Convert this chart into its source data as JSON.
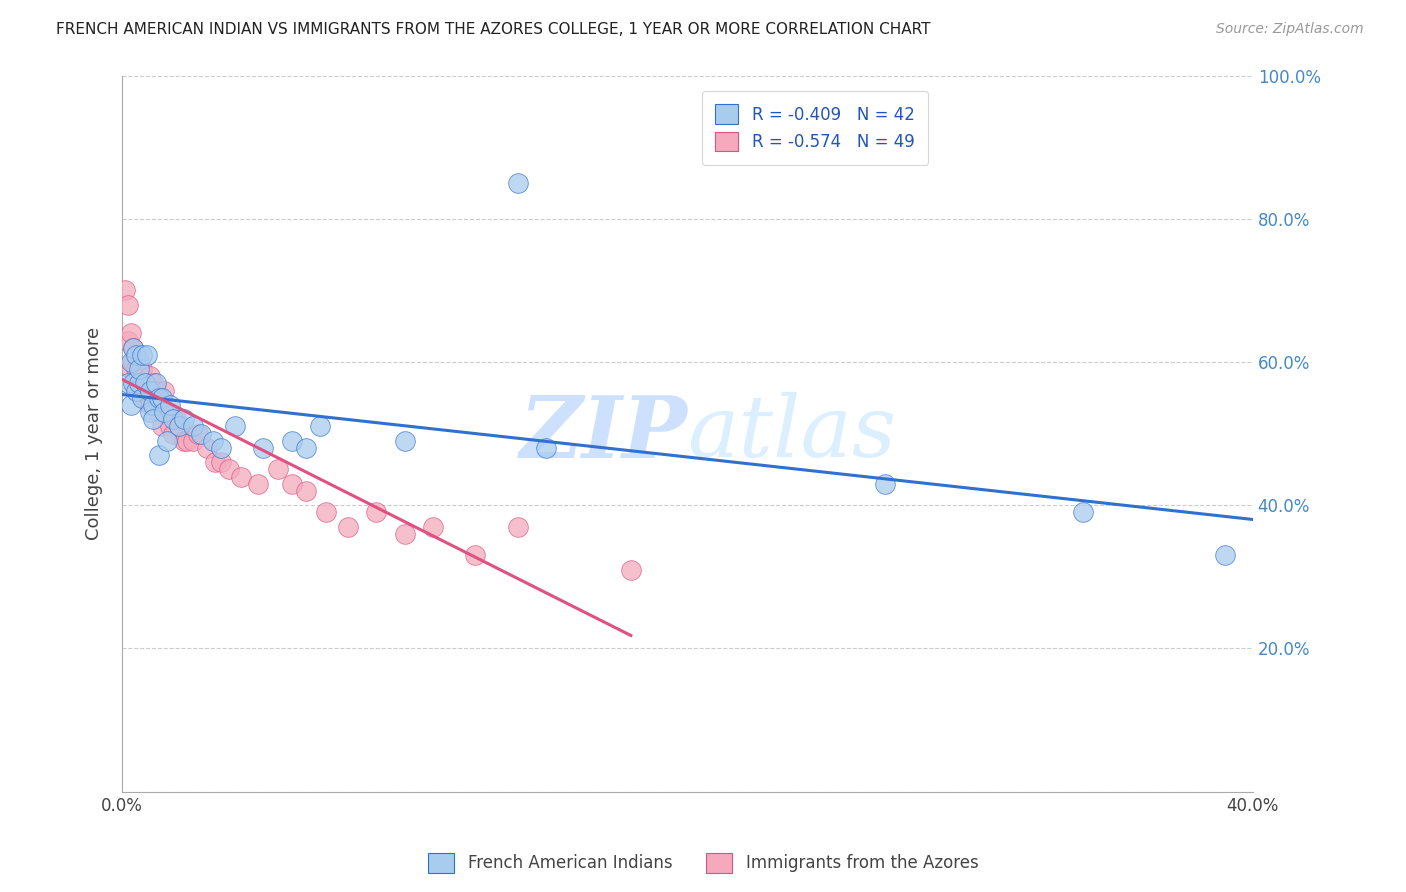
{
  "title": "FRENCH AMERICAN INDIAN VS IMMIGRANTS FROM THE AZORES COLLEGE, 1 YEAR OR MORE CORRELATION CHART",
  "source": "Source: ZipAtlas.com",
  "ylabel": "College, 1 year or more",
  "xlim": [
    0.0,
    0.4
  ],
  "ylim": [
    0.0,
    1.0
  ],
  "yticks": [
    0.0,
    0.2,
    0.4,
    0.6,
    0.8,
    1.0
  ],
  "right_ytick_labels": [
    "",
    "20.0%",
    "40.0%",
    "60.0%",
    "80.0%",
    "100.0%"
  ],
  "xtick_first": "0.0%",
  "xtick_last": "40.0%",
  "blue_R": -0.409,
  "blue_N": 42,
  "pink_R": -0.574,
  "pink_N": 49,
  "legend_label1": "R = -0.409   N = 42",
  "legend_label2": "R = -0.574   N = 49",
  "series1_label": "French American Indians",
  "series2_label": "Immigrants from the Azores",
  "blue_color": "#A8CCEE",
  "pink_color": "#F4AABC",
  "line_blue": "#3070D0",
  "line_pink": "#E05080",
  "watermark_zip": "ZIP",
  "watermark_atlas": "atlas",
  "blue_x": [
    0.002,
    0.003,
    0.003,
    0.004,
    0.004,
    0.005,
    0.005,
    0.006,
    0.006,
    0.007,
    0.007,
    0.008,
    0.009,
    0.01,
    0.01,
    0.011,
    0.011,
    0.012,
    0.013,
    0.013,
    0.014,
    0.015,
    0.016,
    0.017,
    0.018,
    0.02,
    0.022,
    0.025,
    0.028,
    0.032,
    0.035,
    0.04,
    0.05,
    0.06,
    0.065,
    0.07,
    0.1,
    0.14,
    0.15,
    0.27,
    0.34,
    0.39
  ],
  "blue_y": [
    0.57,
    0.54,
    0.6,
    0.57,
    0.62,
    0.56,
    0.61,
    0.57,
    0.59,
    0.55,
    0.61,
    0.57,
    0.61,
    0.53,
    0.56,
    0.54,
    0.52,
    0.57,
    0.55,
    0.47,
    0.55,
    0.53,
    0.49,
    0.54,
    0.52,
    0.51,
    0.52,
    0.51,
    0.5,
    0.49,
    0.48,
    0.51,
    0.48,
    0.49,
    0.48,
    0.51,
    0.49,
    0.85,
    0.48,
    0.43,
    0.39,
    0.33
  ],
  "pink_x": [
    0.001,
    0.002,
    0.002,
    0.003,
    0.003,
    0.004,
    0.004,
    0.005,
    0.005,
    0.006,
    0.006,
    0.007,
    0.007,
    0.008,
    0.008,
    0.009,
    0.01,
    0.01,
    0.011,
    0.012,
    0.013,
    0.014,
    0.015,
    0.016,
    0.017,
    0.018,
    0.019,
    0.02,
    0.022,
    0.023,
    0.025,
    0.027,
    0.03,
    0.033,
    0.035,
    0.038,
    0.042,
    0.048,
    0.055,
    0.06,
    0.065,
    0.072,
    0.08,
    0.09,
    0.1,
    0.11,
    0.125,
    0.14,
    0.18
  ],
  "pink_y": [
    0.7,
    0.68,
    0.63,
    0.59,
    0.64,
    0.6,
    0.62,
    0.57,
    0.59,
    0.57,
    0.6,
    0.56,
    0.59,
    0.57,
    0.55,
    0.56,
    0.54,
    0.58,
    0.57,
    0.56,
    0.53,
    0.51,
    0.56,
    0.53,
    0.51,
    0.5,
    0.52,
    0.51,
    0.49,
    0.49,
    0.49,
    0.5,
    0.48,
    0.46,
    0.46,
    0.45,
    0.44,
    0.43,
    0.45,
    0.43,
    0.42,
    0.39,
    0.37,
    0.39,
    0.36,
    0.37,
    0.33,
    0.37,
    0.31
  ]
}
